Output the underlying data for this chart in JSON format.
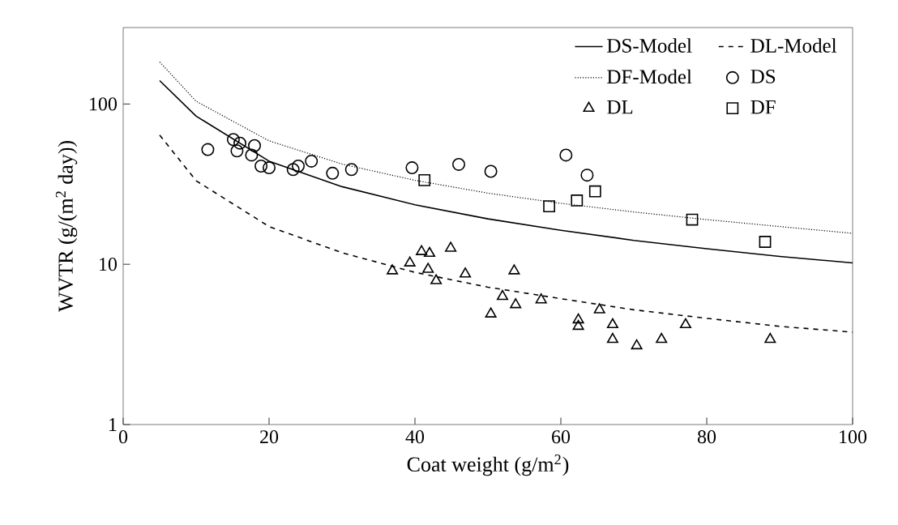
{
  "chart_data": {
    "type": "scatter",
    "xlabel": "Coat weight (g/m$^{2}$)",
    "ylabel": "WVTR (g/(m$^{2}$ day))",
    "xlim": [
      0,
      100
    ],
    "xticks": [
      0,
      20,
      40,
      60,
      80,
      100
    ],
    "ylim": [
      1,
      300
    ],
    "yticks": [
      1,
      10,
      100
    ],
    "log": "y",
    "grid": false,
    "legend": "top right",
    "series": [
      {
        "name": "DS-Model",
        "type": "line",
        "line_style": "solid",
        "marker": "none",
        "color": "#000000",
        "x": [
          5,
          10,
          20,
          30,
          40,
          50,
          60,
          70,
          80,
          90,
          100
        ],
        "values": [
          140,
          84,
          44,
          30.5,
          23.5,
          19.2,
          16.3,
          14.1,
          12.5,
          11.2,
          10.2
        ]
      },
      {
        "name": "DL-Model",
        "type": "line",
        "line_style": "dashed",
        "marker": "none",
        "color": "#000000",
        "x": [
          5,
          10,
          20,
          30,
          40,
          50,
          60,
          70,
          80,
          90,
          100
        ],
        "values": [
          64,
          33.2,
          17.2,
          11.8,
          8.9,
          7.2,
          6.1,
          5.2,
          4.6,
          4.1,
          3.77
        ]
      },
      {
        "name": "DF-Model",
        "type": "line",
        "line_style": "dotted",
        "marker": "none",
        "color": "#000000",
        "x": [
          5,
          10,
          20,
          30,
          40,
          50,
          60,
          70,
          80,
          90,
          100
        ],
        "values": [
          183,
          104,
          58.9,
          42.2,
          33.4,
          27.8,
          24.0,
          21.2,
          19.0,
          17.2,
          15.6
        ]
      },
      {
        "name": "DS",
        "marker": "circle",
        "color": "#000000",
        "x": [
          11.6,
          15.1,
          16.0,
          15.6,
          18.0,
          17.6,
          18.9,
          20.0,
          23.3,
          24.0,
          25.8,
          28.7,
          31.3,
          39.6,
          46.0,
          50.4,
          60.7,
          63.6
        ],
        "values": [
          52,
          60,
          57,
          51,
          55,
          48,
          41,
          40,
          39,
          41,
          44,
          37,
          39,
          40,
          42,
          38,
          48,
          36
        ]
      },
      {
        "name": "DL",
        "marker": "triangle",
        "color": "#000000",
        "x": [
          36.9,
          39.3,
          40.9,
          42.0,
          41.8,
          42.9,
          44.9,
          46.9,
          53.6,
          52.0,
          53.8,
          50.4,
          57.3,
          62.4,
          62.4,
          65.3,
          67.1,
          67.1,
          70.4,
          73.8,
          77.1,
          88.7
        ],
        "values": [
          9.1,
          10.2,
          12.0,
          11.7,
          9.3,
          7.9,
          12.6,
          8.7,
          9.1,
          6.3,
          5.6,
          4.9,
          6.0,
          4.5,
          4.1,
          5.2,
          4.2,
          3.4,
          3.1,
          3.4,
          4.2,
          3.4
        ]
      },
      {
        "name": "DF",
        "marker": "square",
        "color": "#000000",
        "x": [
          41.3,
          58.4,
          62.2,
          64.7,
          78.0,
          88.0
        ],
        "values": [
          33.5,
          23,
          25,
          28.5,
          19,
          13.8
        ]
      }
    ]
  }
}
